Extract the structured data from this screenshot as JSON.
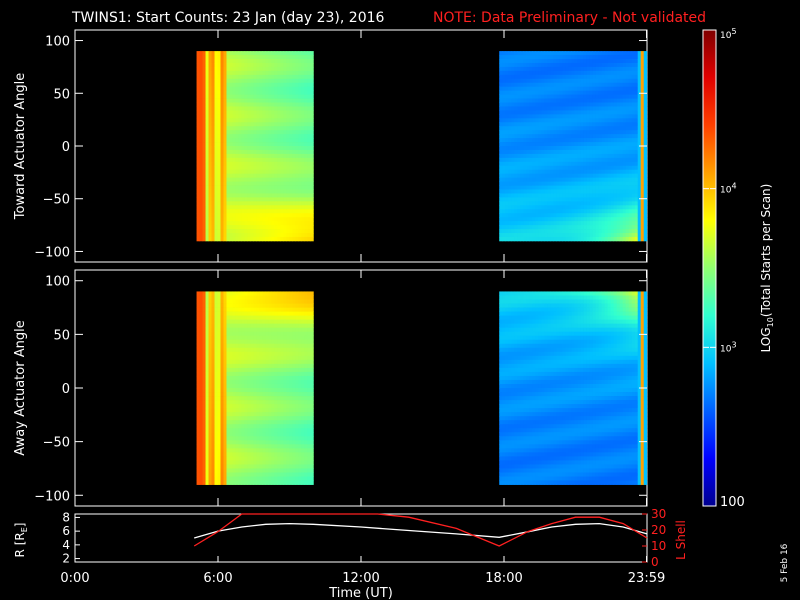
{
  "title": {
    "main": "TWINS1: Start Counts: 23 Jan (day  23), 2016",
    "note": "NOTE: Data Preliminary - Not validated",
    "note_color": "#ff2020"
  },
  "side_date": "5 Feb 16",
  "chart_data": [
    {
      "type": "heatmap",
      "panel": "top",
      "ylabel": "Toward Actuator Angle",
      "ylim": [
        -110,
        110
      ],
      "yticks": [
        100,
        50,
        0,
        -50,
        -100
      ],
      "xlim": [
        0,
        24
      ],
      "data_segments": [
        [
          5.1,
          10.0
        ],
        [
          17.8,
          23.99
        ]
      ],
      "data_y_range": [
        -90,
        90
      ]
    },
    {
      "type": "heatmap",
      "panel": "middle",
      "ylabel": "Away Actuator Angle",
      "ylim": [
        -110,
        110
      ],
      "yticks": [
        100,
        50,
        0,
        -50,
        -100
      ],
      "xlim": [
        0,
        24
      ],
      "data_segments": [
        [
          5.1,
          10.0
        ],
        [
          17.8,
          23.99
        ]
      ],
      "data_y_range": [
        -90,
        90
      ]
    },
    {
      "type": "line",
      "panel": "bottom",
      "xlabel": "Time (UT)",
      "xlim": [
        0,
        24
      ],
      "xticks": [
        "0:00",
        "6:00",
        "12:00",
        "18:00",
        "23:59"
      ],
      "xtick_values": [
        0,
        6,
        12,
        18,
        23.98
      ],
      "left_axis": {
        "label_main": "R [R",
        "label_sub": "E",
        "label_end": "]",
        "ylim": [
          1.5,
          8.5
        ],
        "yticks": [
          "2",
          "4",
          "6",
          "8"
        ],
        "ytick_values": [
          2,
          4,
          6,
          8
        ],
        "color": "#ffffff"
      },
      "right_axis": {
        "label": "L Shell",
        "ylim": [
          0,
          30
        ],
        "yticks": [
          "30",
          "20",
          "10",
          "0"
        ],
        "ytick_values": [
          30,
          20,
          10,
          0
        ],
        "color": "#ff2020"
      },
      "series": [
        {
          "axis": "left",
          "color": "#ffffff",
          "x": [
            5.0,
            6.0,
            7.0,
            8.0,
            9.0,
            10.0,
            12.0,
            14.0,
            16.0,
            17.8,
            19.0,
            20.0,
            21.0,
            22.0,
            23.0,
            24.0
          ],
          "y": [
            5.0,
            6.0,
            6.6,
            7.0,
            7.1,
            7.0,
            6.6,
            6.1,
            5.6,
            5.1,
            5.9,
            6.6,
            7.0,
            7.1,
            6.6,
            5.6
          ]
        },
        {
          "axis": "right",
          "color": "#ff2020",
          "x": [
            5.0,
            6.0,
            7.0,
            12.7,
            14.0,
            16.0,
            17.8,
            19.0,
            20.0,
            21.0,
            22.0,
            23.0,
            24.0
          ],
          "y": [
            10,
            19,
            31,
            31,
            28,
            21,
            10,
            19,
            24,
            28,
            28,
            24,
            15
          ]
        }
      ]
    }
  ],
  "colorbar": {
    "label": "LOG",
    "label_sub": "10",
    "label_rest": "(Total Starts per Scan)",
    "range": [
      100,
      100000
    ],
    "ticks": [
      {
        "base": "10",
        "exp": "5",
        "value": 100000
      },
      {
        "base": "10",
        "exp": "4",
        "value": 10000
      },
      {
        "base": "10",
        "exp": "3",
        "value": 1000
      }
    ],
    "bottom_label": "100",
    "colors": [
      "#00008f",
      "#0000ff",
      "#0060ff",
      "#00c0ff",
      "#30ffd0",
      "#90ff70",
      "#ffff00",
      "#ffa000",
      "#ff4000",
      "#e00000",
      "#800000"
    ]
  }
}
